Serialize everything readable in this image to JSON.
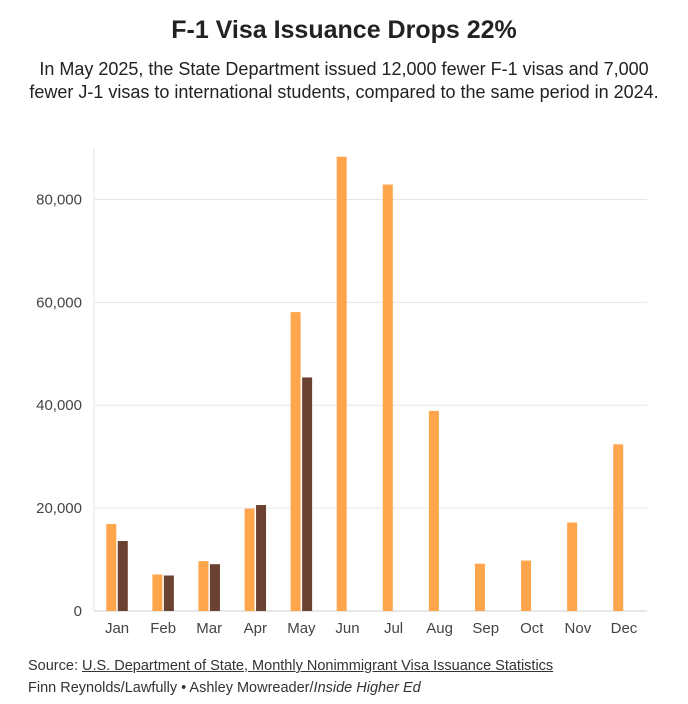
{
  "title": "F-1 Visa Issuance Drops 22%",
  "subtitle": "In May 2025, the State Department issued 12,000 fewer F-1 visas and 7,000 fewer J-1 visas to international students, compared to the same period in 2024.",
  "source": {
    "prefix": "Source: ",
    "link": "U.S. Department of State, Monthly Nonimmigrant Visa Issuance Statistics",
    "line2_a": "Finn Reynolds/Lawfully • Ashley Mowreader/",
    "line2_italic": "Inside Higher Ed"
  },
  "chart_data": {
    "type": "bar",
    "categories": [
      "Jan",
      "Feb",
      "Mar",
      "Apr",
      "May",
      "Jun",
      "Jul",
      "Aug",
      "Sep",
      "Oct",
      "Nov",
      "Dec"
    ],
    "series": [
      {
        "color": "#FFA64D",
        "values": [
          16900,
          7100,
          9700,
          19900,
          58100,
          88300,
          82900,
          38900,
          9200,
          9800,
          17200,
          32400
        ]
      },
      {
        "color": "#6B4232",
        "values": [
          13600,
          6900,
          9100,
          20600,
          45400,
          null,
          null,
          null,
          null,
          null,
          null,
          null
        ]
      }
    ],
    "yticks": [
      0,
      20000,
      40000,
      60000,
      80000
    ],
    "ytick_labels": [
      "0",
      "20,000",
      "40,000",
      "60,000",
      "80,000"
    ],
    "ylim": [
      0,
      90000
    ],
    "grid": true
  }
}
